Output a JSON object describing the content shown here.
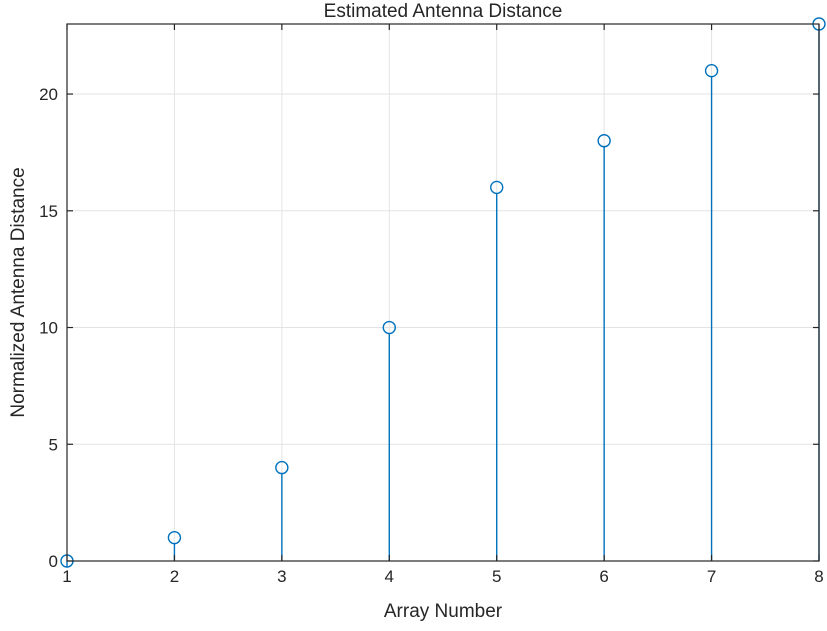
{
  "chart_data": {
    "type": "stem",
    "title": "Estimated Antenna Distance",
    "xlabel": "Array Number",
    "ylabel": "Normalized Antenna Distance",
    "x": [
      1,
      2,
      3,
      4,
      5,
      6,
      7,
      8
    ],
    "values": [
      0,
      1,
      4,
      10,
      16,
      18,
      21,
      23
    ],
    "xlim": [
      1,
      8
    ],
    "ylim": [
      0,
      23
    ],
    "xticks": [
      1,
      2,
      3,
      4,
      5,
      6,
      7,
      8
    ],
    "yticks": [
      0,
      5,
      10,
      15,
      20
    ],
    "grid": true,
    "marker": "circle",
    "colors": {
      "series": "#0072BD",
      "axis": "#262626",
      "grid": "#e3e3e3"
    }
  }
}
